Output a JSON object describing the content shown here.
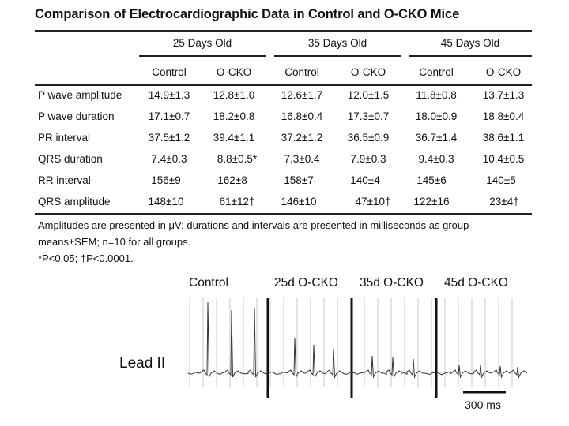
{
  "table": {
    "title": "Comparison of Electrocardiographic Data in Control and O-CKO Mice",
    "groups": [
      "25 Days Old",
      "35 Days Old",
      "45 Days Old"
    ],
    "subheaders": [
      "Control",
      "O-CKO",
      "Control",
      "O-CKO",
      "Control",
      "O-CKO"
    ],
    "rows": [
      {
        "label": "P wave amplitude",
        "values": [
          "14.9±1.3",
          "12.8±1.0",
          "12.6±1.7",
          "12.0±1.5",
          "11.8±0.8",
          "13.7±1.3"
        ]
      },
      {
        "label": "P wave duration",
        "values": [
          "17.1±0.7",
          "18.2±0.8",
          "16.8±0.4",
          "17.3±0.7",
          "18.0±0.9",
          "18.8±0.4"
        ]
      },
      {
        "label": "PR interval",
        "values": [
          "37.5±1.2",
          "39.4±1.1",
          "37.2±1.2",
          "36.5±0.9",
          "36.7±1.4",
          "38.6±1.1"
        ]
      },
      {
        "label": "QRS duration",
        "values": [
          "7.4±0.3",
          "8.8±0.5*",
          "7.3±0.4",
          "7.9±0.3",
          "9.4±0.3",
          "10.4±0.5"
        ]
      },
      {
        "label": "RR interval",
        "values": [
          "156±9",
          "162±8",
          "158±7",
          "140±4",
          "145±6",
          "140±5"
        ]
      },
      {
        "label": "QRS amplitude",
        "values": [
          "148±10",
          "61±12†",
          "146±10",
          "47±10†",
          "122±16",
          "23±4†"
        ]
      }
    ],
    "footnote_line1": "Amplitudes are presented in μV; durations and intervals are presented in milliseconds as group",
    "footnote_line2": "means±SEM; n=10 for all groups.",
    "footnote_line3": "*P<0.05; †P<0.0001."
  },
  "ecg": {
    "panel_labels": [
      "Control",
      "25d O-CKO",
      "35d O-CKO",
      "45d O-CKO"
    ],
    "lead_label": "Lead II",
    "scale_bar_label": "300 ms"
  }
}
